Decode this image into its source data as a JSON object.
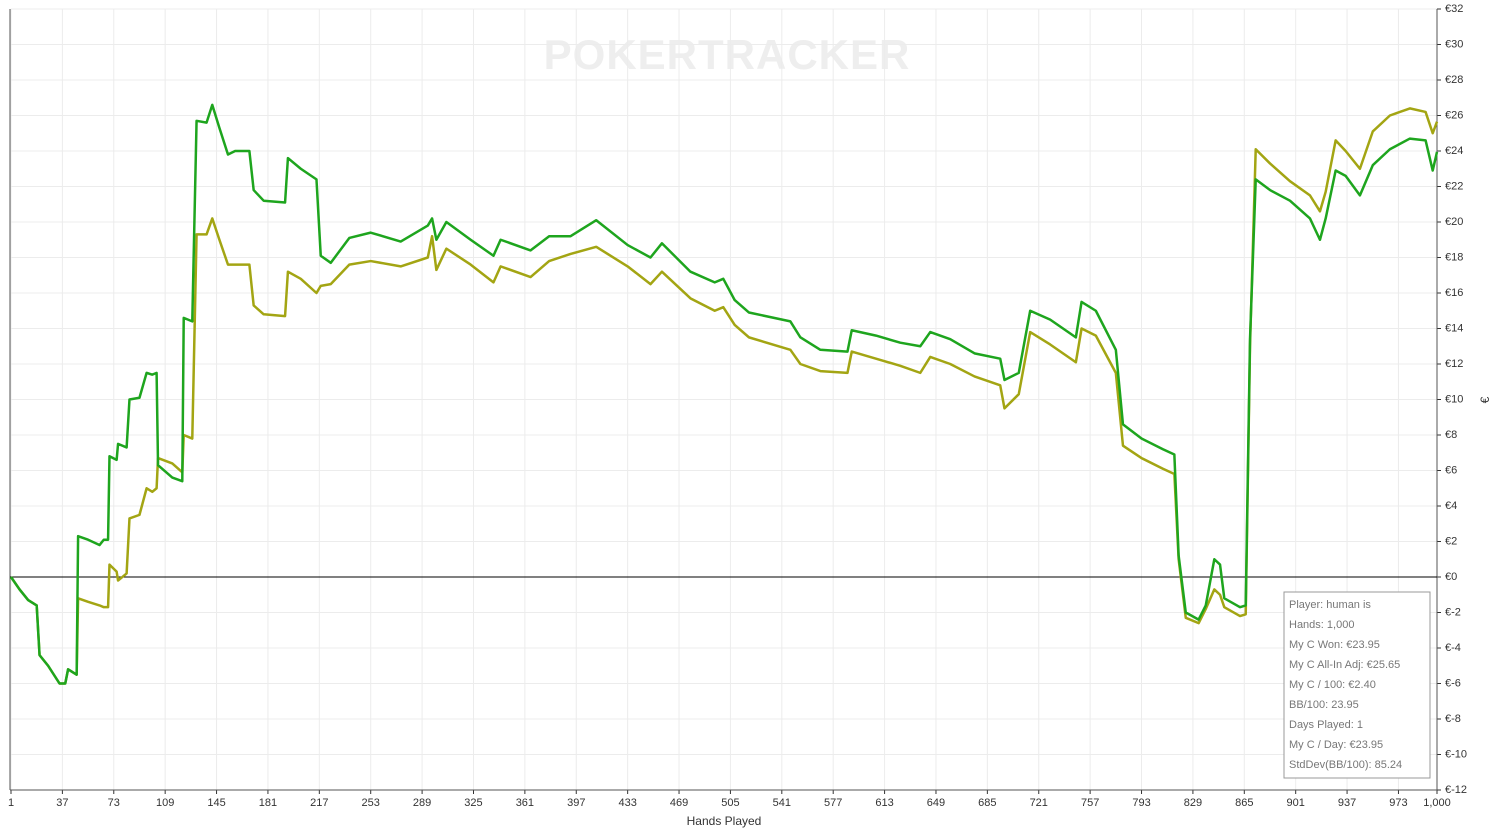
{
  "chart_data": {
    "type": "line",
    "watermark": "POKERTRACKER",
    "x_label": "Hands Played",
    "y_label": "€",
    "grid": true,
    "x": [
      1,
      7,
      13,
      19,
      21,
      27,
      35,
      39,
      41,
      47,
      48,
      55,
      63,
      66,
      69,
      70,
      75,
      76,
      82,
      84,
      91,
      96,
      100,
      103,
      104,
      114,
      121,
      122,
      128,
      131,
      138,
      142,
      147,
      153,
      158,
      168,
      171,
      178,
      193,
      195,
      204,
      215,
      218,
      225,
      238,
      253,
      274,
      293,
      296,
      299,
      306,
      323,
      339,
      344,
      365,
      378,
      393,
      411,
      433,
      449,
      457,
      477,
      494,
      500,
      508,
      518,
      547,
      554,
      568,
      587,
      590,
      607,
      624,
      638,
      645,
      659,
      676,
      694,
      697,
      707,
      715,
      729,
      747,
      751,
      761,
      775,
      780,
      793,
      808,
      816,
      819,
      824,
      833,
      838,
      844,
      848,
      851,
      862,
      866,
      869,
      873,
      883,
      897,
      911,
      918,
      922,
      929,
      936,
      946,
      955,
      967,
      981,
      992,
      997,
      1000
    ],
    "series": [
      {
        "color": "#1ea51e",
        "values": [
          0,
          -0.7,
          -1.3,
          -1.6,
          -4.4,
          -5.0,
          -6.0,
          -6.0,
          -5.2,
          -5.5,
          2.3,
          2.1,
          1.8,
          2.1,
          2.1,
          6.8,
          6.6,
          7.5,
          7.3,
          10.0,
          10.1,
          11.5,
          11.4,
          11.5,
          6.3,
          5.6,
          5.4,
          14.6,
          14.4,
          25.7,
          25.6,
          26.6,
          25.3,
          23.8,
          24.0,
          24.0,
          21.8,
          21.2,
          21.1,
          23.6,
          23.0,
          22.4,
          18.1,
          17.7,
          19.1,
          19.4,
          18.9,
          19.8,
          20.2,
          19.0,
          20.0,
          19.0,
          18.1,
          19.0,
          18.4,
          19.2,
          19.2,
          20.1,
          18.7,
          18.0,
          18.8,
          17.2,
          16.6,
          16.8,
          15.6,
          14.9,
          14.4,
          13.5,
          12.8,
          12.7,
          13.9,
          13.6,
          13.2,
          13.0,
          13.8,
          13.4,
          12.6,
          12.3,
          11.1,
          11.5,
          15.0,
          14.5,
          13.5,
          15.5,
          15.0,
          12.8,
          8.6,
          7.8,
          7.2,
          6.9,
          1.2,
          -2.0,
          -2.4,
          -1.6,
          1.0,
          0.7,
          -1.2,
          -1.7,
          -1.6,
          13.4,
          22.4,
          21.8,
          21.2,
          20.2,
          19.0,
          20.2,
          22.9,
          22.6,
          21.5,
          23.2,
          24.1,
          24.7,
          24.6,
          22.9,
          23.95
        ]
      },
      {
        "color": "#a3a513",
        "values": [
          0,
          -0.7,
          -1.3,
          -1.6,
          -4.4,
          -5.0,
          -6.0,
          -6.0,
          -5.2,
          -5.5,
          -1.2,
          -1.4,
          -1.6,
          -1.7,
          -1.7,
          0.7,
          0.3,
          -0.2,
          0.2,
          3.3,
          3.5,
          5.0,
          4.8,
          5.0,
          6.7,
          6.4,
          5.9,
          8.0,
          7.8,
          19.3,
          19.3,
          20.2,
          19.0,
          17.6,
          17.6,
          17.6,
          15.3,
          14.8,
          14.7,
          17.2,
          16.8,
          16.0,
          16.4,
          16.5,
          17.6,
          17.8,
          17.5,
          18.0,
          19.2,
          17.3,
          18.5,
          17.6,
          16.6,
          17.5,
          16.9,
          17.8,
          18.2,
          18.6,
          17.5,
          16.5,
          17.2,
          15.7,
          15.0,
          15.2,
          14.2,
          13.5,
          12.8,
          12.0,
          11.6,
          11.5,
          12.7,
          12.3,
          11.9,
          11.5,
          12.4,
          12.0,
          11.3,
          10.8,
          9.5,
          10.3,
          13.8,
          13.1,
          12.1,
          14.0,
          13.6,
          11.5,
          7.4,
          6.7,
          6.1,
          5.8,
          1.0,
          -2.3,
          -2.6,
          -1.8,
          -0.7,
          -1.0,
          -1.7,
          -2.2,
          -2.1,
          13.0,
          24.1,
          23.3,
          22.3,
          21.5,
          20.6,
          21.7,
          24.6,
          24.0,
          23.0,
          25.1,
          26.0,
          26.4,
          26.2,
          25.0,
          25.65
        ]
      }
    ],
    "xlim": [
      1,
      1000
    ],
    "xticks": [
      1,
      37,
      73,
      109,
      145,
      181,
      217,
      253,
      289,
      325,
      361,
      397,
      433,
      469,
      505,
      541,
      577,
      613,
      649,
      685,
      721,
      757,
      793,
      829,
      865,
      901,
      937,
      973,
      {
        "value": 1000,
        "label": "1,000"
      }
    ],
    "ylim": [
      -12,
      32
    ],
    "yticks": [
      {
        "value": -12,
        "label": "€-12"
      },
      {
        "value": -10,
        "label": "€-10"
      },
      {
        "value": -8,
        "label": "€-8"
      },
      {
        "value": -6,
        "label": "€-6"
      },
      {
        "value": -4,
        "label": "€-4"
      },
      {
        "value": -2,
        "label": "€-2"
      },
      {
        "value": 0,
        "label": "€0"
      },
      {
        "value": 2,
        "label": "€2"
      },
      {
        "value": 4,
        "label": "€4"
      },
      {
        "value": 6,
        "label": "€6"
      },
      {
        "value": 8,
        "label": "€8"
      },
      {
        "value": 10,
        "label": "€10"
      },
      {
        "value": 12,
        "label": "€12"
      },
      {
        "value": 14,
        "label": "€14"
      },
      {
        "value": 16,
        "label": "€16"
      },
      {
        "value": 18,
        "label": "€18"
      },
      {
        "value": 20,
        "label": "€20"
      },
      {
        "value": 22,
        "label": "€22"
      },
      {
        "value": 24,
        "label": "€24"
      },
      {
        "value": 26,
        "label": "€26"
      },
      {
        "value": 28,
        "label": "€28"
      },
      {
        "value": 30,
        "label": "€30"
      },
      {
        "value": 32,
        "label": "€32"
      }
    ],
    "annotations": [
      "Player: human is",
      "Hands: 1,000",
      "My C Won: €23.95",
      "My C All-In Adj: €25.65",
      "My C / 100: €2.40",
      "BB/100: 23.95",
      "Days Played: 1",
      "My C / Day: €23.95",
      "StdDev(BB/100): 85.24"
    ]
  }
}
